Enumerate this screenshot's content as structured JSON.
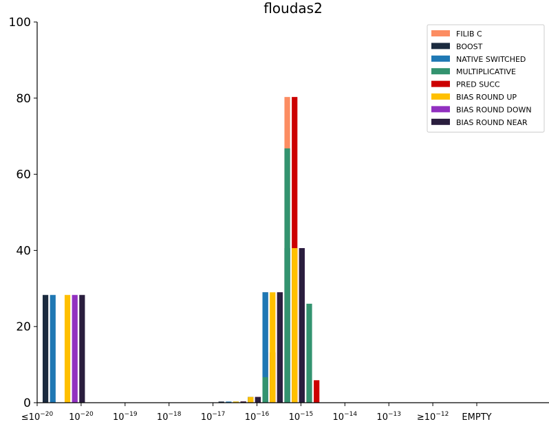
{
  "chart_data": {
    "type": "bar",
    "title": "floudas2",
    "xlabel": "",
    "ylabel": "",
    "ylim": [
      0,
      100
    ],
    "yticks": [
      0,
      20,
      40,
      60,
      80,
      100
    ],
    "grid": false,
    "legend_position": "top-right",
    "categories": [
      {
        "prefix": "≤",
        "base": "10",
        "exp": "−20"
      },
      {
        "prefix": "",
        "base": "10",
        "exp": "−20"
      },
      {
        "prefix": "",
        "base": "10",
        "exp": "−19"
      },
      {
        "prefix": "",
        "base": "10",
        "exp": "−18"
      },
      {
        "prefix": "",
        "base": "10",
        "exp": "−17"
      },
      {
        "prefix": "",
        "base": "10",
        "exp": "−16"
      },
      {
        "prefix": "",
        "base": "10",
        "exp": "−15"
      },
      {
        "prefix": "",
        "base": "10",
        "exp": "−14"
      },
      {
        "prefix": "",
        "base": "10",
        "exp": "−13"
      },
      {
        "prefix": "≥",
        "base": "10",
        "exp": "−12"
      },
      {
        "prefix": "",
        "base": "EMPTY",
        "exp": ""
      }
    ],
    "sub_bins": [
      0,
      0.167,
      0.333,
      0.5,
      0.667,
      0.833
    ],
    "series": [
      {
        "name": "FILIB C",
        "color": "#fc8d62",
        "bars": [
          {
            "bin": 4.5,
            "value": 0.3
          },
          {
            "bin": 4.833,
            "value": 1.5
          },
          {
            "bin": 5.0,
            "value": 13.2
          },
          {
            "bin": 5.333,
            "value": 29
          },
          {
            "bin": 5.5,
            "value": 80.3
          },
          {
            "bin": 5.833,
            "value": 40.6
          },
          {
            "bin": 6.0,
            "value": 5.9
          }
        ]
      },
      {
        "name": "BOOST",
        "color": "#1b2b3f",
        "bars": [
          {
            "bin": 0,
            "value": 28.3
          },
          {
            "bin": 4.0,
            "value": 0.3
          },
          {
            "bin": 4.5,
            "value": 0.3
          },
          {
            "bin": 4.667,
            "value": 1.5
          },
          {
            "bin": 5.0,
            "value": 29
          },
          {
            "bin": 5.5,
            "value": 40.6
          }
        ]
      },
      {
        "name": "NATIVE SWITCHED",
        "color": "#1f78b4",
        "bars": [
          {
            "bin": 0.167,
            "value": 28.3
          },
          {
            "bin": 4.167,
            "value": 0.3
          },
          {
            "bin": 4.5,
            "value": 0.3
          },
          {
            "bin": 4.667,
            "value": 1.5
          },
          {
            "bin": 5.0,
            "value": 29
          },
          {
            "bin": 5.5,
            "value": 40.6
          }
        ]
      },
      {
        "name": "MULTIPLICATIVE",
        "color": "#33936f",
        "bars": [
          {
            "bin": 4.333,
            "value": 0.3
          },
          {
            "bin": 4.833,
            "value": 1.5
          },
          {
            "bin": 5.0,
            "value": 6.7
          },
          {
            "bin": 5.5,
            "value": 66.8
          },
          {
            "bin": 6.0,
            "value": 26
          }
        ]
      },
      {
        "name": "PRED SUCC",
        "color": "#cc0000",
        "bars": [
          {
            "bin": 4.5,
            "value": 0.3
          },
          {
            "bin": 4.833,
            "value": 1.5
          },
          {
            "bin": 5.167,
            "value": 13.2
          },
          {
            "bin": 5.667,
            "value": 80.3
          },
          {
            "bin": 6.167,
            "value": 5.9
          }
        ]
      },
      {
        "name": "BIAS ROUND UP",
        "color": "#ffc000",
        "bars": [
          {
            "bin": 0.5,
            "value": 28.3
          },
          {
            "bin": 4.333,
            "value": 0.3
          },
          {
            "bin": 4.5,
            "value": 0.3
          },
          {
            "bin": 4.667,
            "value": 1.5
          },
          {
            "bin": 5.167,
            "value": 29
          },
          {
            "bin": 5.667,
            "value": 40.6
          }
        ]
      },
      {
        "name": "BIAS ROUND DOWN",
        "color": "#9130c0",
        "bars": [
          {
            "bin": 0.667,
            "value": 28.3
          },
          {
            "bin": 4.5,
            "value": 0.3
          },
          {
            "bin": 4.833,
            "value": 1.5
          },
          {
            "bin": 5.333,
            "value": 29
          },
          {
            "bin": 5.833,
            "value": 40.6
          }
        ]
      },
      {
        "name": "BIAS ROUND NEAR",
        "color": "#2a1e3e",
        "bars": [
          {
            "bin": 0.833,
            "value": 28.3
          },
          {
            "bin": 4.5,
            "value": 0.3
          },
          {
            "bin": 4.833,
            "value": 1.5
          },
          {
            "bin": 5.333,
            "value": 29
          },
          {
            "bin": 5.833,
            "value": 40.6
          }
        ]
      }
    ]
  }
}
